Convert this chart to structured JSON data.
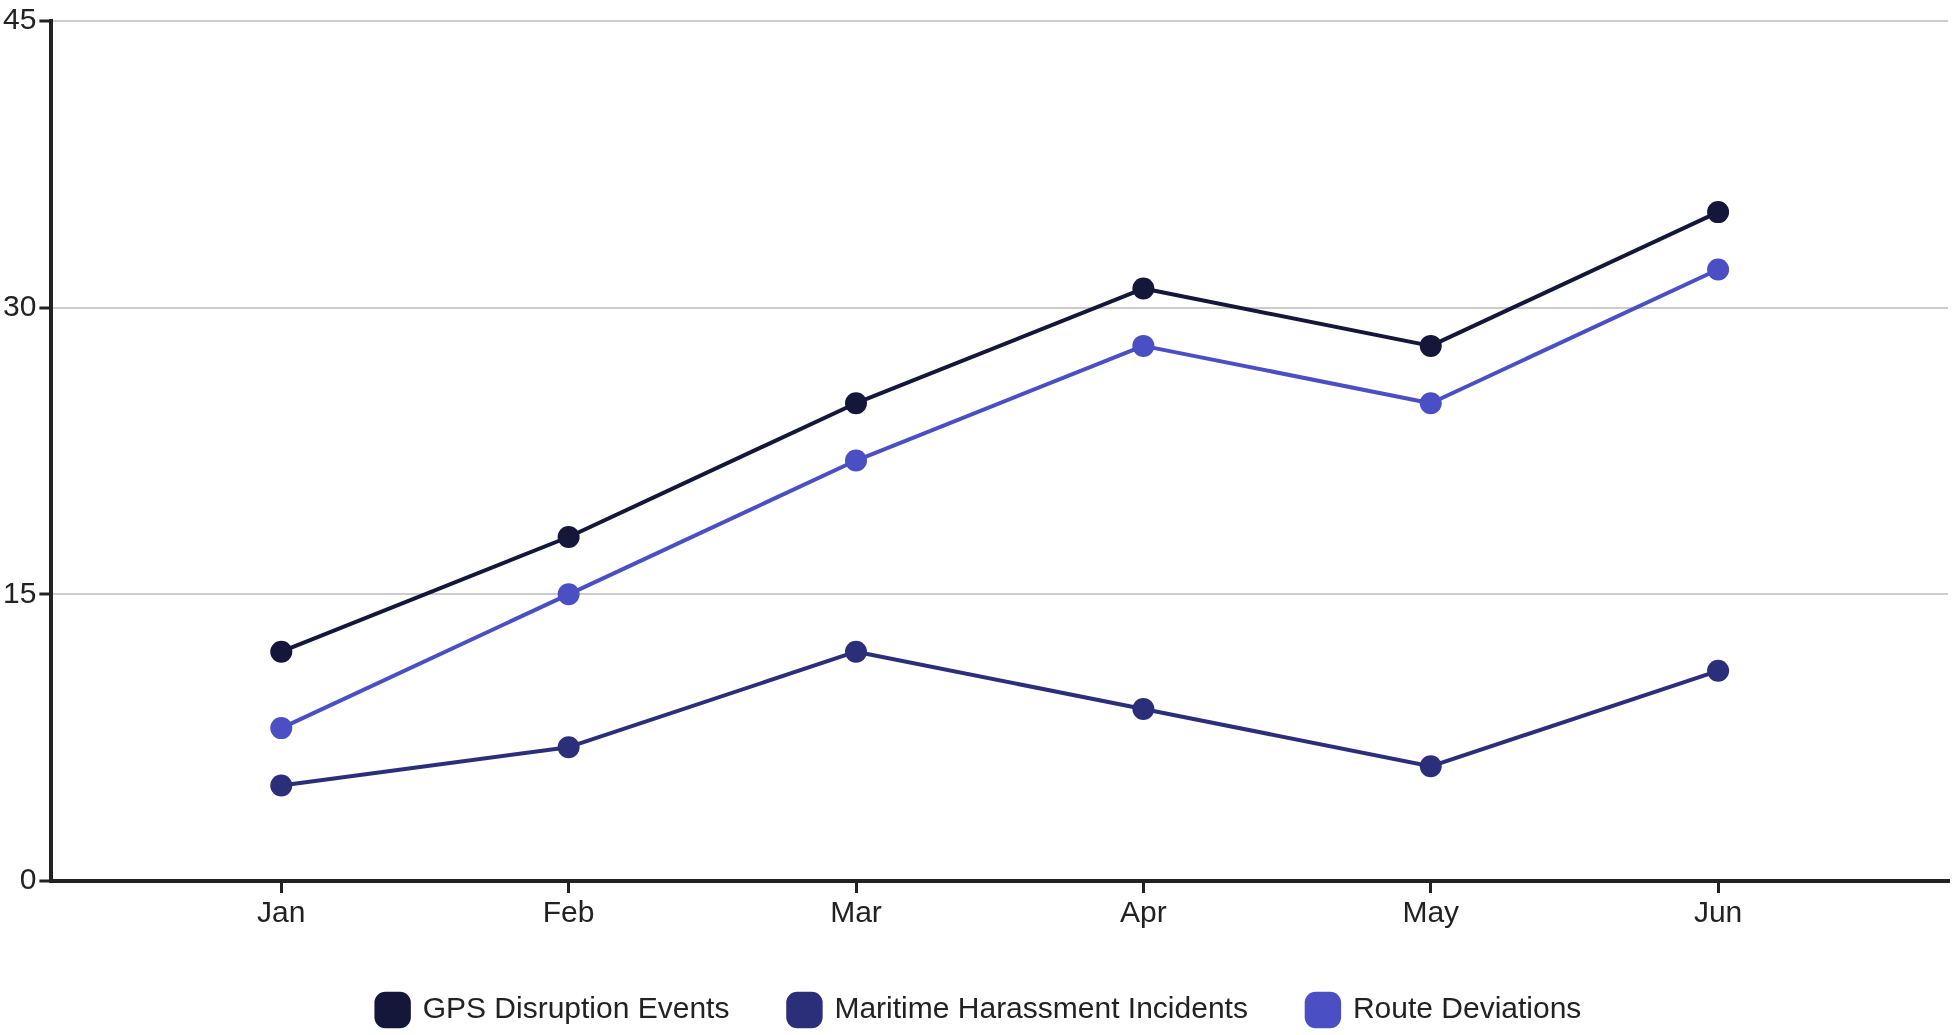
{
  "chart_data": {
    "type": "line",
    "categories": [
      "Jan",
      "Feb",
      "Mar",
      "Apr",
      "May",
      "Jun"
    ],
    "series": [
      {
        "name": "GPS Disruption Events",
        "color": "#14163a",
        "values": [
          12,
          18,
          25,
          31,
          28,
          35
        ]
      },
      {
        "name": "Maritime Harassment Incidents",
        "color": "#2b2f7a",
        "values": [
          5,
          7,
          12,
          9,
          6,
          11
        ]
      },
      {
        "name": "Route Deviations",
        "color": "#4a4fc4",
        "values": [
          8,
          15,
          22,
          28,
          25,
          32
        ]
      }
    ],
    "ylim": [
      0,
      45
    ],
    "yticks": [
      0,
      15,
      30,
      45
    ],
    "grid": "y",
    "legend": "bottom",
    "marker": "circle",
    "line_style": "solid"
  }
}
